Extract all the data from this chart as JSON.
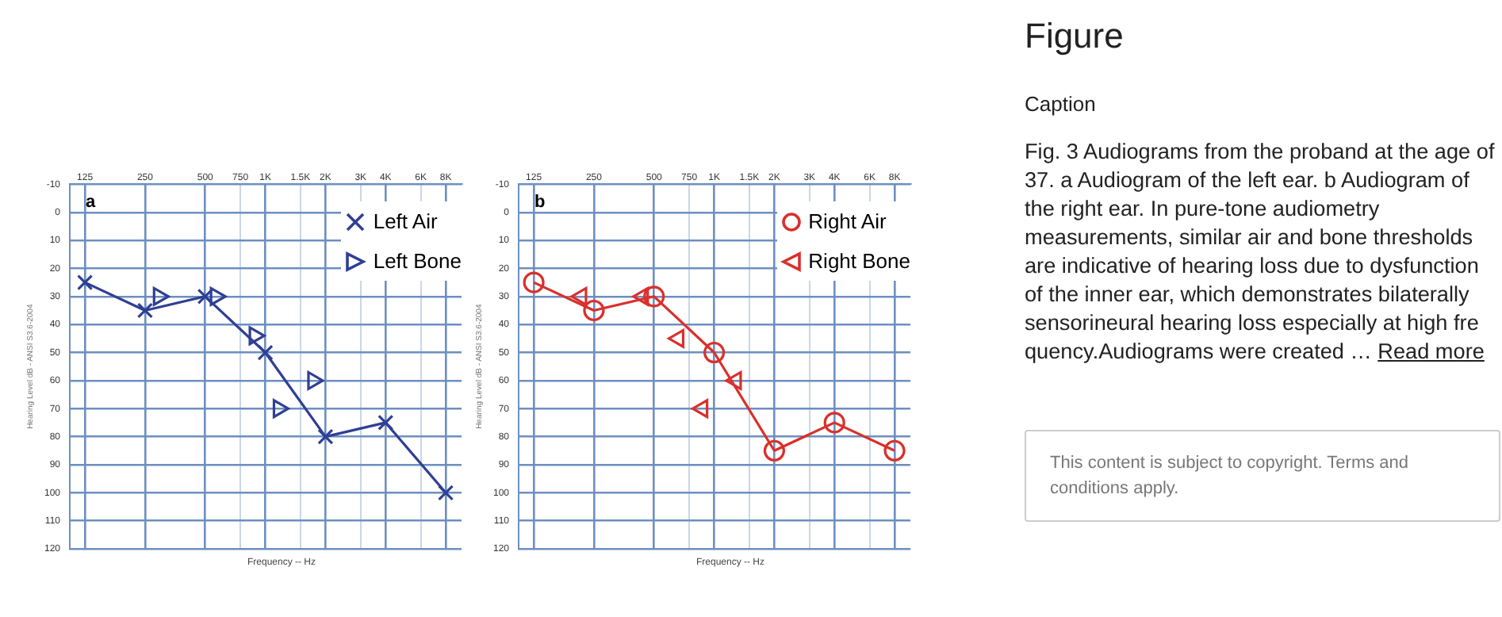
{
  "chart_data": [
    {
      "type": "line",
      "title": "a",
      "xlabel": "Frequency -- Hz",
      "ylabel": "Hearing Level dB - ANSI S3.6-2004",
      "log": "x",
      "xlim": [
        105,
        9600
      ],
      "xticks": [
        125,
        250,
        500,
        750,
        {
          "value": 1000,
          "label": "1K"
        },
        {
          "value": 1500,
          "label": "1.5K"
        },
        {
          "value": 2000,
          "label": "2K"
        },
        {
          "value": 3000,
          "label": "3K"
        },
        {
          "value": 4000,
          "label": "4K"
        },
        {
          "value": 6000,
          "label": "6K"
        },
        {
          "value": 8000,
          "label": "8K"
        }
      ],
      "ylim": [
        120,
        -10
      ],
      "yticks": [
        -10,
        0,
        10,
        20,
        30,
        40,
        50,
        60,
        70,
        80,
        90,
        100,
        110,
        120
      ],
      "grid": true,
      "legend": "top right",
      "series": [
        {
          "name": "Left Air",
          "type": "line",
          "marker": "cross",
          "line_style": "solid",
          "color": "#2f3f94",
          "x": [
            125,
            250,
            500,
            1000,
            2000,
            4000,
            8000
          ],
          "values": [
            25,
            35,
            30,
            50,
            80,
            75,
            100
          ]
        },
        {
          "name": "Left Bone",
          "type": "scatter",
          "marker": "triangle",
          "color": "#2f3f94",
          "x": [
            293,
            565,
            884,
            1167,
            1737
          ],
          "values": [
            30,
            30,
            44,
            70,
            60
          ]
        }
      ]
    },
    {
      "type": "line",
      "title": "b",
      "xlabel": "Frequency -- Hz",
      "ylabel": "Hearing Level dB - ANSI S3.6-2004",
      "log": "x",
      "xlim": [
        105,
        9600
      ],
      "xticks": [
        125,
        250,
        500,
        750,
        {
          "value": 1000,
          "label": "1K"
        },
        {
          "value": 1500,
          "label": "1.5K"
        },
        {
          "value": 2000,
          "label": "2K"
        },
        {
          "value": 3000,
          "label": "3K"
        },
        {
          "value": 4000,
          "label": "4K"
        },
        {
          "value": 6000,
          "label": "6K"
        },
        {
          "value": 8000,
          "label": "8K"
        }
      ],
      "ylim": [
        120,
        -10
      ],
      "yticks": [
        -10,
        0,
        10,
        20,
        30,
        40,
        50,
        60,
        70,
        80,
        90,
        100,
        110,
        120
      ],
      "grid": true,
      "legend": "top right",
      "series": [
        {
          "name": "Right Air",
          "type": "line",
          "marker": "circle",
          "line_style": "solid",
          "color": "#d9302c",
          "x": [
            125,
            250,
            500,
            1000,
            2000,
            4000,
            8000
          ],
          "values": [
            25,
            35,
            30,
            50,
            85,
            75,
            85
          ]
        },
        {
          "name": "Right Bone",
          "type": "scatter",
          "marker": "triangle",
          "color": "#d9302c",
          "x": [
            216,
            440,
            662,
            872,
            1284
          ],
          "values": [
            30,
            30,
            45,
            70,
            60
          ]
        }
      ]
    },
    {
      "type": "other",
      "title": "Figure",
      "subtitle": "Caption",
      "annotations": [
        "Fig. 3 Audiograms from the proband at the age of 37. a Audiogram of the left ear. b Audiogram of the right ear. In pure-tone audiometry measurements, similar air and bone thresholds are indicative of hearing loss due to dysfunction of the inner ear, which demonstrates bilaterally sensorineural hearing loss especially at high fre quency.Audiograms were created  …",
        "Read more",
        "This content is subject to copyright. Terms and conditions apply."
      ]
    }
  ]
}
